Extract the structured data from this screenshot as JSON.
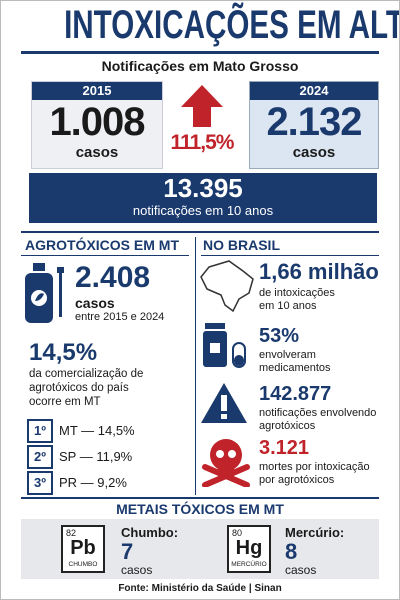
{
  "header": {
    "title": "INTOXICAÇÕES EM ALTA",
    "subtitle": "Notificações em Mato Grosso"
  },
  "comparison": {
    "left": {
      "year": "2015",
      "value": "1.008",
      "unit": "casos"
    },
    "change": "111,5%",
    "right": {
      "year": "2024",
      "value": "2.132",
      "unit": "casos"
    }
  },
  "total": {
    "value": "13.395",
    "caption": "notificações em 10 anos"
  },
  "mt": {
    "heading": "AGROTÓXICOS EM MT",
    "cases": {
      "value": "2.408",
      "unit": "casos",
      "period": "entre 2015 e 2024"
    },
    "share": {
      "value": "14,5%",
      "lines": [
        "da comercialização de",
        "agrotóxicos do país",
        "ocorre em MT"
      ]
    },
    "ranking": [
      {
        "rank": "1º",
        "text": "MT — 14,5%"
      },
      {
        "rank": "2º",
        "text": "SP — 11,9%"
      },
      {
        "rank": "3º",
        "text": "PR — 9,2%"
      }
    ]
  },
  "brasil": {
    "heading": "NO BRASIL",
    "items": [
      {
        "value": "1,66 milhão",
        "lines": [
          "de intoxicações",
          "em 10 anos"
        ]
      },
      {
        "value": "53%",
        "lines": [
          "envolveram",
          "medicamentos"
        ]
      },
      {
        "value": "142.877",
        "lines": [
          "notificações envolvendo",
          "agrotóxicos"
        ]
      },
      {
        "value": "3.121",
        "lines": [
          "mortes por intoxicação",
          "por agrotóxicos"
        ]
      }
    ]
  },
  "metals": {
    "heading": "METAIS TÓXICOS EM MT",
    "items": [
      {
        "number": "82",
        "symbol": "Pb",
        "element": "CHUMBO",
        "label": "Chumbo:",
        "value": "7",
        "unit": "casos"
      },
      {
        "number": "80",
        "symbol": "Hg",
        "element": "MERCÚRIO",
        "label": "Mercúrio:",
        "value": "8",
        "unit": "casos"
      }
    ]
  },
  "footer": {
    "source": "Fonte: Ministério da Saúde | Sinan"
  }
}
